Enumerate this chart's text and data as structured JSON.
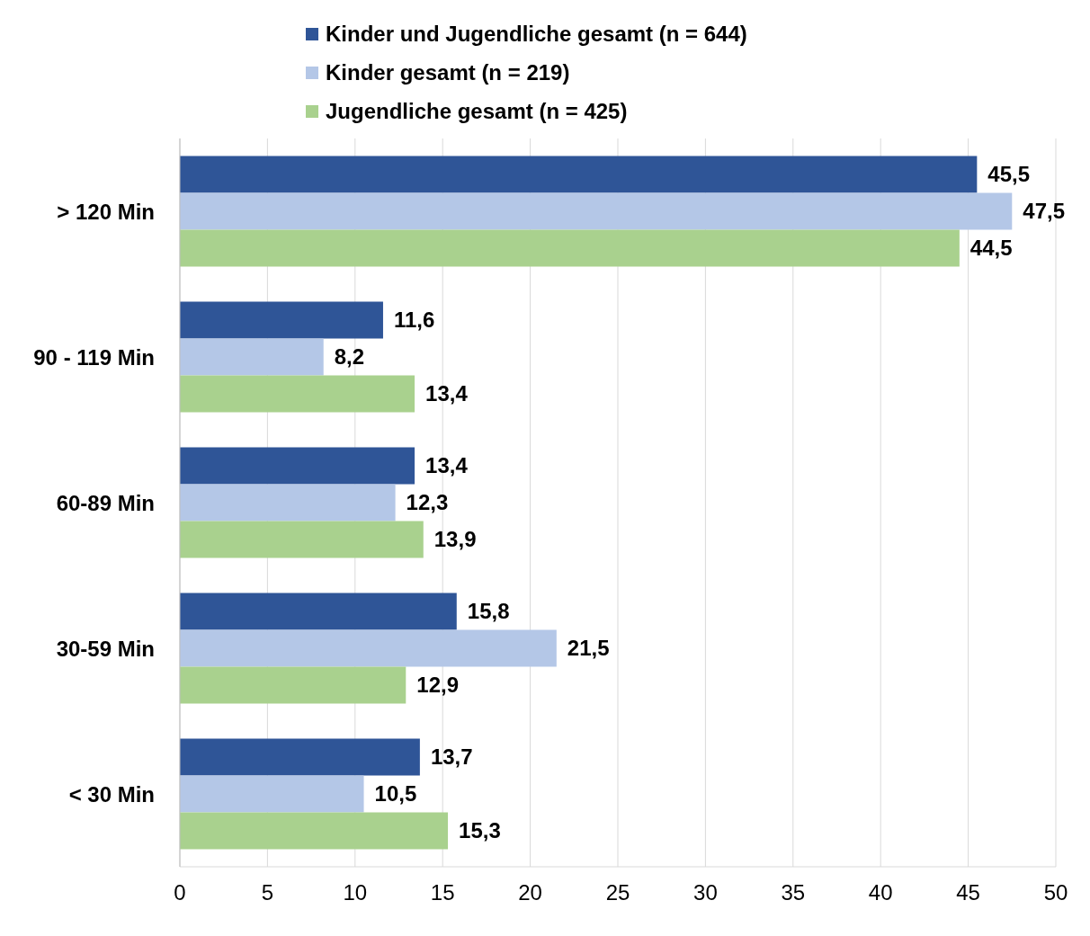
{
  "chart_data": {
    "type": "bar",
    "orientation": "horizontal",
    "categories": [
      "> 120 Min",
      "90 - 119 Min",
      "60-89 Min",
      "30-59 Min",
      "< 30 Min"
    ],
    "series": [
      {
        "name": "Kinder und Jugendliche gesamt (n = 644)",
        "color": "#2f5597",
        "values": [
          45.5,
          11.6,
          13.4,
          15.8,
          13.7
        ],
        "value_labels": [
          "45,5",
          "11,6",
          "13,4",
          "15,8",
          "13,7"
        ]
      },
      {
        "name": "Kinder gesamt (n = 219)",
        "color": "#b4c7e7",
        "values": [
          47.5,
          8.2,
          12.3,
          21.5,
          10.5
        ],
        "value_labels": [
          "47,5",
          "8,2",
          "12,3",
          "21,5",
          "10,5"
        ]
      },
      {
        "name": "Jugendliche gesamt (n = 425)",
        "color": "#a9d18e",
        "values": [
          44.5,
          13.4,
          13.9,
          12.9,
          15.3
        ],
        "value_labels": [
          "44,5",
          "13,4",
          "13,9",
          "12,9",
          "15,3"
        ]
      }
    ],
    "xlim": [
      0,
      50
    ],
    "xticks": [
      0,
      5,
      10,
      15,
      20,
      25,
      30,
      35,
      40,
      45,
      50
    ],
    "grid": "x",
    "legend": "top"
  }
}
